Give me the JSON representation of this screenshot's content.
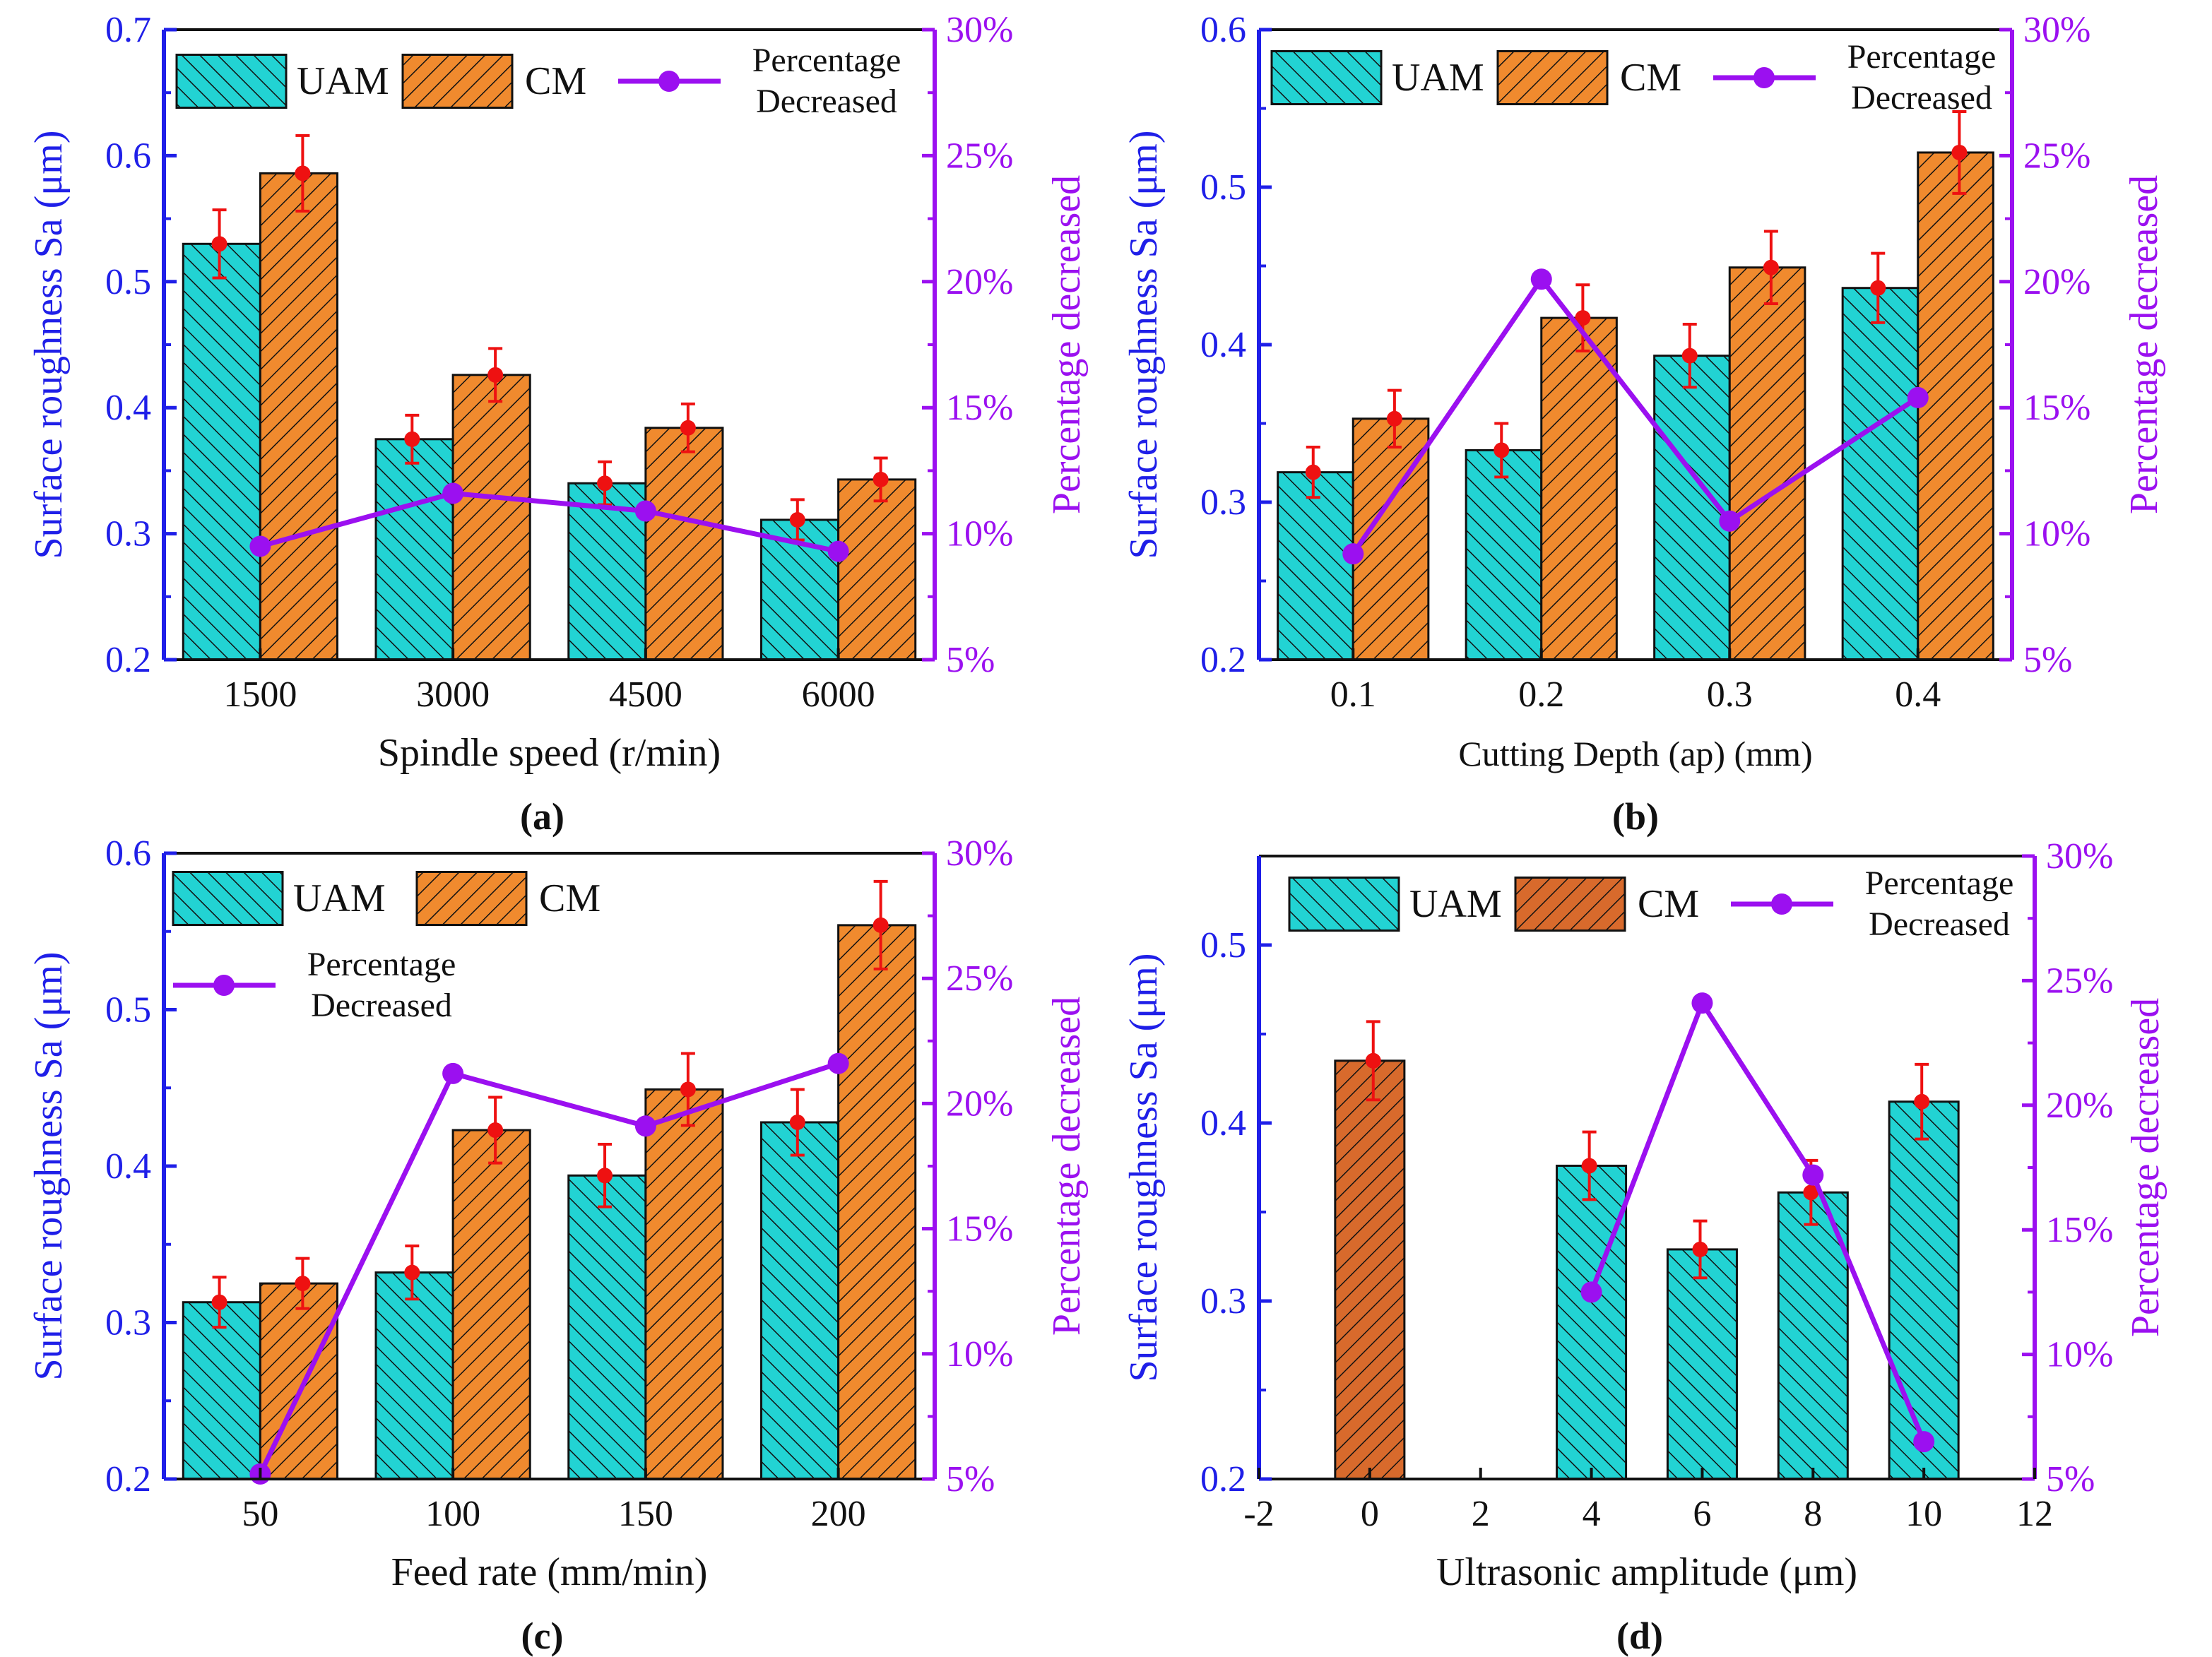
{
  "colors": {
    "left_axis": "#1f1fe8",
    "right_axis": "#9b10f0",
    "uam_fill": "#22d3d3",
    "cm_fill": "#f08a2e",
    "cm_fill_dark": "#d86a2c",
    "line": "#9b10f0",
    "error": "#ee1111"
  },
  "panels": [
    {
      "id": "a",
      "caption": "(a)",
      "xlabel": "Spindle speed (r/min)",
      "ylabel_left": "Surface roughness Sa (μm)",
      "ylabel_right": "Percentage decreased",
      "legend": {
        "uam": "UAM",
        "cm": "CM",
        "line": [
          "Percentage",
          "Decreased"
        ]
      }
    },
    {
      "id": "b",
      "caption": "(b)",
      "xlabel": "Cutting Depth (ap) (mm)",
      "ylabel_left": "Surface roughness Sa (μm)",
      "ylabel_right": "Percentage decreased",
      "legend": {
        "uam": "UAM",
        "cm": "CM",
        "line": [
          "Percentage",
          "Decreased"
        ]
      }
    },
    {
      "id": "c",
      "caption": "(c)",
      "xlabel": "Feed rate (mm/min)",
      "ylabel_left": "Surface roughness Sa (μm)",
      "ylabel_right": "Percentage decreased",
      "legend": {
        "uam": "UAM",
        "cm": "CM",
        "line": [
          "Percentage",
          "Decreased"
        ]
      }
    },
    {
      "id": "d",
      "caption": "(d)",
      "xlabel": "Ultrasonic amplitude (μm)",
      "ylabel_left": "Surface roughness Sa (μm)",
      "ylabel_right": "Percentage decreased",
      "legend": {
        "uam": "UAM",
        "cm": "CM",
        "line": [
          "Percentage",
          "Decreased"
        ]
      }
    }
  ],
  "chart_data": [
    {
      "type": "bar",
      "title": "(a)",
      "xlabel": "Spindle speed (r/min)",
      "ylabel": "Surface roughness Sa (μm)",
      "ylabel_right": "Percentage decreased",
      "categories": [
        "1500",
        "3000",
        "4500",
        "6000"
      ],
      "ylim": [
        0.2,
        0.7
      ],
      "yticks": [
        "0.2",
        "0.3",
        "0.4",
        "0.5",
        "0.6",
        "0.7"
      ],
      "ylim_right": [
        5,
        30
      ],
      "yticks_right": [
        "5%",
        "10%",
        "15%",
        "20%",
        "25%",
        "30%"
      ],
      "series": [
        {
          "name": "UAM",
          "values": [
            0.53,
            0.375,
            0.34,
            0.311
          ],
          "error": [
            0.027,
            0.019,
            0.017,
            0.016
          ]
        },
        {
          "name": "CM",
          "values": [
            0.586,
            0.426,
            0.384,
            0.343
          ],
          "error": [
            0.03,
            0.021,
            0.019,
            0.017
          ]
        }
      ],
      "line": {
        "name": "Percentage Decreased",
        "values": [
          9.5,
          11.6,
          10.9,
          9.3
        ]
      }
    },
    {
      "type": "bar",
      "title": "(b)",
      "xlabel": "Cutting Depth (ap) (mm)",
      "ylabel": "Surface roughness Sa (μm)",
      "ylabel_right": "Percentage decreased",
      "categories": [
        "0.1",
        "0.2",
        "0.3",
        "0.4"
      ],
      "ylim": [
        0.2,
        0.6
      ],
      "yticks": [
        "0.2",
        "0.3",
        "0.4",
        "0.5",
        "0.6"
      ],
      "ylim_right": [
        5,
        30
      ],
      "yticks_right": [
        "5%",
        "10%",
        "15%",
        "20%",
        "25%",
        "30%"
      ],
      "series": [
        {
          "name": "UAM",
          "values": [
            0.319,
            0.333,
            0.393,
            0.436
          ],
          "error": [
            0.016,
            0.017,
            0.02,
            0.022
          ]
        },
        {
          "name": "CM",
          "values": [
            0.353,
            0.417,
            0.449,
            0.522
          ],
          "error": [
            0.018,
            0.021,
            0.023,
            0.026
          ]
        }
      ],
      "line": {
        "name": "Percentage Decreased",
        "values": [
          9.2,
          20.1,
          10.5,
          15.4
        ]
      }
    },
    {
      "type": "bar",
      "title": "(c)",
      "xlabel": "Feed rate (mm/min)",
      "ylabel": "Surface roughness Sa (μm)",
      "ylabel_right": "Percentage decreased",
      "categories": [
        "50",
        "100",
        "150",
        "200"
      ],
      "ylim": [
        0.2,
        0.6
      ],
      "yticks": [
        "0.2",
        "0.3",
        "0.4",
        "0.5",
        "0.6"
      ],
      "ylim_right": [
        5,
        30
      ],
      "yticks_right": [
        "5%",
        "10%",
        "15%",
        "20%",
        "25%",
        "30%"
      ],
      "series": [
        {
          "name": "UAM",
          "values": [
            0.313,
            0.332,
            0.394,
            0.428
          ],
          "error": [
            0.016,
            0.017,
            0.02,
            0.021
          ]
        },
        {
          "name": "CM",
          "values": [
            0.325,
            0.423,
            0.449,
            0.554
          ],
          "error": [
            0.016,
            0.021,
            0.023,
            0.028
          ]
        }
      ],
      "line": {
        "name": "Percentage Decreased",
        "values": [
          5.2,
          21.2,
          19.1,
          21.6
        ]
      }
    },
    {
      "type": "bar",
      "title": "(d)",
      "xlabel": "Ultrasonic amplitude (μm)",
      "ylabel": "Surface roughness Sa (μm)",
      "ylabel_right": "Percentage decreased",
      "x_numeric": true,
      "xlim": [
        -2,
        12
      ],
      "xticks": [
        "-2",
        "0",
        "2",
        "4",
        "6",
        "8",
        "10",
        "12"
      ],
      "ylim": [
        0.2,
        0.55
      ],
      "yticks": [
        "0.2",
        "0.3",
        "0.4",
        "0.5"
      ],
      "ylim_right": [
        5,
        30
      ],
      "yticks_right": [
        "5%",
        "10%",
        "15%",
        "20%",
        "25%",
        "30%"
      ],
      "bars": [
        {
          "x": 0,
          "value": 0.435,
          "error": 0.022,
          "series": "CM"
        },
        {
          "x": 4,
          "value": 0.376,
          "error": 0.019,
          "series": "UAM"
        },
        {
          "x": 6,
          "value": 0.329,
          "error": 0.016,
          "series": "UAM"
        },
        {
          "x": 8,
          "value": 0.361,
          "error": 0.018,
          "series": "UAM"
        },
        {
          "x": 10,
          "value": 0.412,
          "error": 0.021,
          "series": "UAM"
        }
      ],
      "line": {
        "name": "Percentage Decreased",
        "x": [
          4,
          6,
          8,
          10
        ],
        "values": [
          12.5,
          24.1,
          17.2,
          6.5
        ]
      }
    }
  ]
}
